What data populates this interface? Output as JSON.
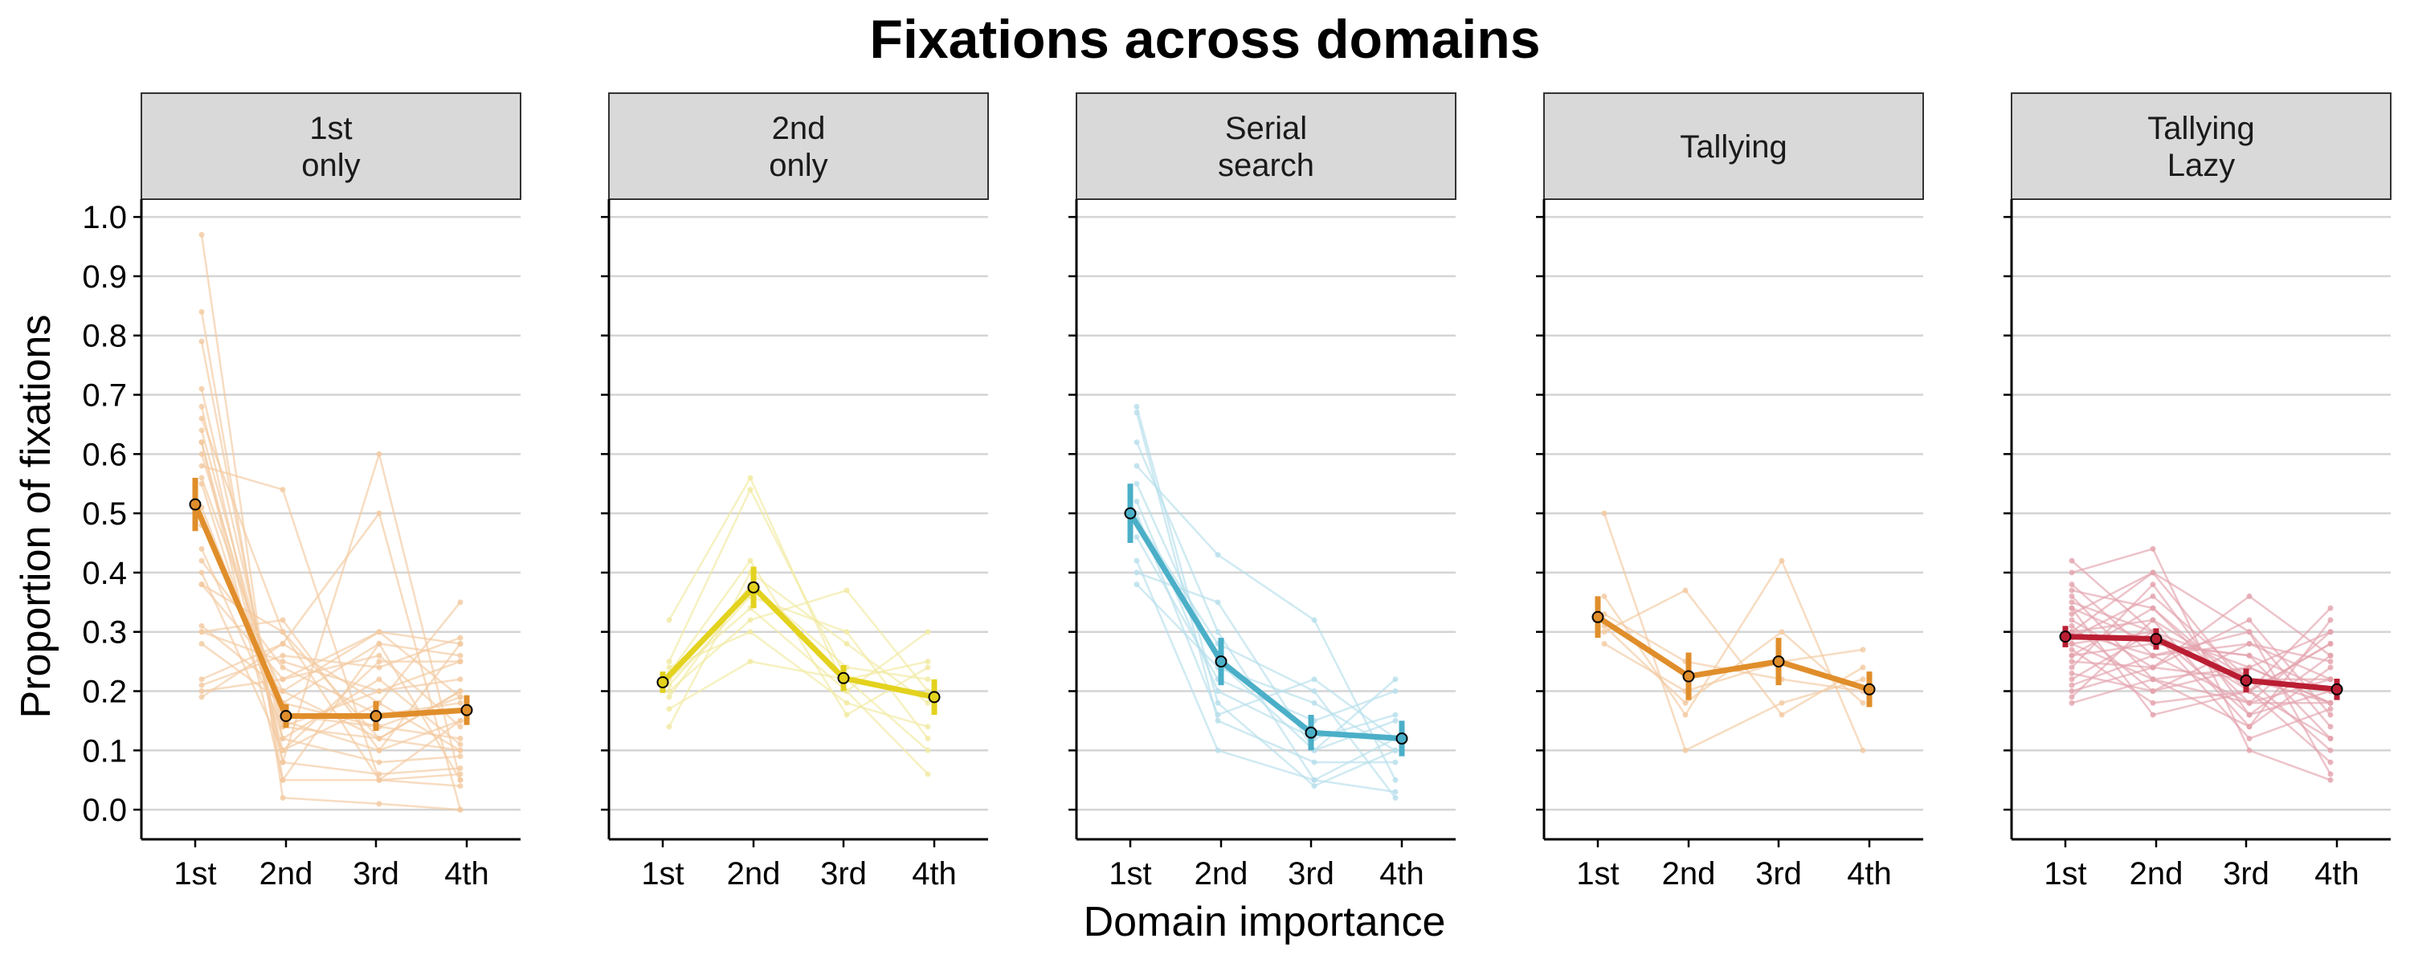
{
  "chart_data": {
    "type": "line",
    "title": "Fixations across domains",
    "xlabel": "Domain importance",
    "ylabel": "Proportion of fixations",
    "categories": [
      "1st",
      "2nd",
      "3rd",
      "4th"
    ],
    "y_ticks": [
      "0.0",
      "0.1",
      "0.2",
      "0.3",
      "0.4",
      "0.5",
      "0.6",
      "0.7",
      "0.8",
      "0.9",
      "1.0"
    ],
    "ylim": [
      -0.05,
      1.03
    ],
    "grid": "horizontal",
    "panels": [
      {
        "label": [
          "1st",
          "only"
        ],
        "color": "#E08E2B",
        "light_color": "#F3C9A0",
        "mean": [
          0.515,
          0.158,
          0.158,
          0.168
        ],
        "error": [
          0.045,
          0.02,
          0.025,
          0.025
        ],
        "individuals": [
          [
            0.97,
            0.02,
            0.01,
            0.0
          ],
          [
            0.84,
            0.05,
            0.05,
            0.06
          ],
          [
            0.79,
            0.08,
            0.06,
            0.07
          ],
          [
            0.71,
            0.12,
            0.08,
            0.09
          ],
          [
            0.68,
            0.08,
            0.6,
            0.05
          ],
          [
            0.66,
            0.3,
            0.05,
            0.15
          ],
          [
            0.64,
            0.14,
            0.12,
            0.1
          ],
          [
            0.62,
            0.1,
            0.18,
            0.1
          ],
          [
            0.6,
            0.15,
            0.1,
            0.15
          ],
          [
            0.58,
            0.54,
            0.05,
            0.04
          ],
          [
            0.56,
            0.18,
            0.14,
            0.12
          ],
          [
            0.55,
            0.12,
            0.22,
            0.11
          ],
          [
            0.51,
            0.16,
            0.14,
            0.19
          ],
          [
            0.48,
            0.2,
            0.12,
            0.2
          ],
          [
            0.44,
            0.14,
            0.2,
            0.22
          ],
          [
            0.42,
            0.24,
            0.16,
            0.18
          ],
          [
            0.4,
            0.1,
            0.25,
            0.25
          ],
          [
            0.38,
            0.3,
            0.12,
            0.2
          ],
          [
            0.38,
            0.22,
            0.26,
            0.14
          ],
          [
            0.31,
            0.2,
            0.3,
            0.19
          ],
          [
            0.3,
            0.25,
            0.2,
            0.25
          ],
          [
            0.28,
            0.18,
            0.28,
            0.26
          ],
          [
            0.22,
            0.28,
            0.5,
            0.0
          ],
          [
            0.21,
            0.26,
            0.24,
            0.29
          ],
          [
            0.2,
            0.22,
            0.3,
            0.28
          ],
          [
            0.19,
            0.28,
            0.18,
            0.35
          ],
          [
            0.3,
            0.32,
            0.1,
            0.28
          ],
          [
            0.62,
            0.05,
            0.28,
            0.05
          ]
        ]
      },
      {
        "label": [
          "2nd",
          "only"
        ],
        "color": "#E3D21E",
        "light_color": "#F1EAA0",
        "mean": [
          0.215,
          0.375,
          0.222,
          0.19
        ],
        "error": [
          0.018,
          0.035,
          0.022,
          0.03
        ],
        "individuals": [
          [
            0.32,
            0.56,
            0.2,
            0.06
          ],
          [
            0.25,
            0.54,
            0.22,
            0.1
          ],
          [
            0.22,
            0.34,
            0.2,
            0.3
          ],
          [
            0.2,
            0.32,
            0.37,
            0.2
          ],
          [
            0.17,
            0.25,
            0.22,
            0.25
          ],
          [
            0.14,
            0.4,
            0.28,
            0.18
          ],
          [
            0.24,
            0.3,
            0.18,
            0.14
          ],
          [
            0.19,
            0.38,
            0.24,
            0.22
          ],
          [
            0.21,
            0.36,
            0.3,
            0.12
          ],
          [
            0.23,
            0.42,
            0.16,
            0.24
          ]
        ]
      },
      {
        "label": [
          "Serial",
          "search"
        ],
        "color": "#4BAFC8",
        "light_color": "#B6DFEB",
        "mean": [
          0.5,
          0.25,
          0.13,
          0.12
        ],
        "error": [
          0.05,
          0.04,
          0.03,
          0.03
        ],
        "individuals": [
          [
            0.68,
            0.18,
            0.04,
            0.1
          ],
          [
            0.67,
            0.15,
            0.08,
            0.08
          ],
          [
            0.62,
            0.3,
            0.05,
            0.03
          ],
          [
            0.58,
            0.43,
            0.32,
            0.05
          ],
          [
            0.55,
            0.25,
            0.1,
            0.22
          ],
          [
            0.52,
            0.2,
            0.12,
            0.16
          ],
          [
            0.49,
            0.28,
            0.2,
            0.02
          ],
          [
            0.46,
            0.22,
            0.15,
            0.2
          ],
          [
            0.42,
            0.1,
            0.05,
            0.12
          ],
          [
            0.4,
            0.35,
            0.1,
            0.15
          ],
          [
            0.38,
            0.24,
            0.18,
            0.1
          ],
          [
            0.5,
            0.16,
            0.22,
            0.12
          ]
        ]
      },
      {
        "label": [
          "Tallying"
        ],
        "color": "#E08E2B",
        "light_color": "#F3C9A0",
        "mean": [
          0.325,
          0.225,
          0.25,
          0.203
        ],
        "error": [
          0.035,
          0.04,
          0.04,
          0.03
        ],
        "individuals": [
          [
            0.5,
            0.1,
            0.18,
            0.22
          ],
          [
            0.36,
            0.16,
            0.42,
            0.1
          ],
          [
            0.3,
            0.37,
            0.16,
            0.24
          ],
          [
            0.28,
            0.2,
            0.25,
            0.27
          ],
          [
            0.33,
            0.25,
            0.22,
            0.2
          ],
          [
            0.31,
            0.18,
            0.3,
            0.18
          ]
        ]
      },
      {
        "label": [
          "Tallying",
          "Lazy"
        ],
        "color": "#BA1E33",
        "light_color": "#E3A3AD",
        "mean": [
          0.292,
          0.288,
          0.218,
          0.203
        ],
        "error": [
          0.018,
          0.018,
          0.02,
          0.018
        ],
        "individuals": [
          [
            0.42,
            0.3,
            0.12,
            0.17
          ],
          [
            0.4,
            0.44,
            0.1,
            0.05
          ],
          [
            0.38,
            0.26,
            0.18,
            0.18
          ],
          [
            0.37,
            0.34,
            0.2,
            0.12
          ],
          [
            0.36,
            0.22,
            0.24,
            0.18
          ],
          [
            0.35,
            0.3,
            0.16,
            0.2
          ],
          [
            0.34,
            0.28,
            0.26,
            0.12
          ],
          [
            0.33,
            0.4,
            0.2,
            0.08
          ],
          [
            0.32,
            0.24,
            0.22,
            0.22
          ],
          [
            0.31,
            0.2,
            0.28,
            0.25
          ],
          [
            0.3,
            0.32,
            0.14,
            0.24
          ],
          [
            0.3,
            0.26,
            0.3,
            0.14
          ],
          [
            0.29,
            0.36,
            0.22,
            0.1
          ],
          [
            0.28,
            0.22,
            0.18,
            0.3
          ],
          [
            0.28,
            0.3,
            0.24,
            0.18
          ],
          [
            0.27,
            0.18,
            0.2,
            0.34
          ],
          [
            0.26,
            0.34,
            0.18,
            0.22
          ],
          [
            0.26,
            0.28,
            0.26,
            0.2
          ],
          [
            0.25,
            0.24,
            0.32,
            0.16
          ],
          [
            0.24,
            0.38,
            0.16,
            0.26
          ],
          [
            0.23,
            0.2,
            0.24,
            0.3
          ],
          [
            0.22,
            0.3,
            0.2,
            0.28
          ],
          [
            0.21,
            0.26,
            0.28,
            0.22
          ],
          [
            0.2,
            0.24,
            0.36,
            0.26
          ],
          [
            0.19,
            0.32,
            0.22,
            0.18
          ],
          [
            0.18,
            0.22,
            0.14,
            0.32
          ],
          [
            0.34,
            0.16,
            0.2,
            0.28
          ],
          [
            0.3,
            0.4,
            0.3,
            0.06
          ]
        ]
      }
    ]
  }
}
